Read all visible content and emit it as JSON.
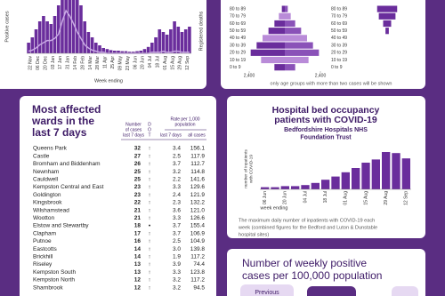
{
  "cases_panel": {
    "type": "bar",
    "y_label_left": "Positive cases",
    "y_label_right": "Registered deaths",
    "x_label": "Week ending",
    "dates": [
      "22 Nov",
      "06 Dec",
      "20 Dec",
      "03 Jan",
      "17 Jan",
      "31 Jan",
      "14 Feb",
      "28 Feb",
      "14 Mar",
      "28 Mar",
      "11 Apr",
      "25 Apr",
      "09 May",
      "23 May",
      "06 Jun",
      "20 Jun",
      "04 Jul",
      "18 Jul",
      "01 Aug",
      "15 Aug",
      "29 Aug",
      "12 Sep"
    ],
    "cases": [
      20,
      30,
      45,
      60,
      70,
      60,
      55,
      70,
      90,
      120,
      140,
      150,
      130,
      110,
      90,
      60,
      40,
      30,
      20,
      15,
      10,
      8,
      6,
      5,
      5,
      4,
      4,
      3,
      3,
      4,
      5,
      8,
      12,
      20,
      30,
      45,
      40,
      35,
      45,
      60,
      50,
      40,
      45,
      50
    ],
    "deaths": [
      2,
      3,
      5,
      8,
      10,
      12,
      12,
      14,
      18,
      30,
      40,
      35,
      28,
      20,
      14,
      8,
      5,
      3,
      2,
      1,
      1,
      0,
      0,
      0,
      0,
      0,
      0,
      0,
      0,
      0,
      0,
      0,
      0,
      1,
      1,
      1,
      2,
      1,
      1,
      2,
      2,
      1,
      1,
      1
    ],
    "ylim": [
      0,
      100
    ],
    "y2lim": [
      0,
      50
    ]
  },
  "age_panel": {
    "type": "bar",
    "age_groups": [
      "80 to 89",
      "70 to 79",
      "60 to 69",
      "50 to 59",
      "40 to 49",
      "30 to 39",
      "20 to 29",
      "10 to 19",
      "0 to 9"
    ],
    "cases": [
      200,
      400,
      700,
      1100,
      1500,
      1900,
      2300,
      1600,
      700
    ],
    "deaths": [
      30,
      25,
      12,
      5,
      0,
      0,
      0,
      0,
      0
    ],
    "xticks": [
      {
        "value": -2400,
        "label": "2,400"
      },
      {
        "value": 2400,
        "label": "2,400"
      }
    ],
    "deaths_xlim": [
      -40,
      40
    ],
    "note": "only age groups with more than two cases will be shown"
  },
  "wards": {
    "title": [
      "Most affected",
      "wards in the",
      "last 7 days"
    ],
    "headers": {
      "cases": [
        "Number",
        "of cases"
      ],
      "dot": [
        "D",
        "O",
        "T"
      ],
      "rate": [
        "Rate per 1,000",
        "population"
      ],
      "cases_sub": "last 7 days",
      "rate7": "last 7 days",
      "all": "all cases"
    },
    "rows": [
      [
        "Queens Park",
        "32",
        "↑",
        "3.4",
        "156.1"
      ],
      [
        "Castle",
        "27",
        "↑",
        "2.5",
        "117.9"
      ],
      [
        "Bromham and Biddenham",
        "26",
        "↑",
        "3.7",
        "112.7"
      ],
      [
        "Newnham",
        "25",
        "↑",
        "3.2",
        "114.8"
      ],
      [
        "Cauldwell",
        "25",
        "↑",
        "2.2",
        "141.6"
      ],
      [
        "Kempston Central and East",
        "23",
        "↑",
        "3.3",
        "129.6"
      ],
      [
        "Goldington",
        "23",
        "↑",
        "2.4",
        "121.9"
      ],
      [
        "Kingsbrook",
        "22",
        "↑",
        "2.3",
        "132.2"
      ],
      [
        "Wilshamstead",
        "21",
        "↑",
        "3.6",
        "121.0"
      ],
      [
        "Wootton",
        "21",
        "↑",
        "3.3",
        "126.6"
      ],
      [
        "Elstow and Stewartby",
        "18",
        "•",
        "3.7",
        "155.4"
      ],
      [
        "Clapham",
        "17",
        "↑",
        "3.7",
        "106.9"
      ],
      [
        "Putnoe",
        "16",
        "↑",
        "2.5",
        "104.9"
      ],
      [
        "Eastcotts",
        "14",
        "↑",
        "3.0",
        "139.8"
      ],
      [
        "Brickhill",
        "14",
        "↑",
        "1.9",
        "117.2"
      ],
      [
        "Riseley",
        "13",
        "↑",
        "3.9",
        "74.4"
      ],
      [
        "Kempston South",
        "13",
        "↑",
        "3.3",
        "123.8"
      ],
      [
        "Kempston North",
        "12",
        "↑",
        "3.2",
        "117.2"
      ],
      [
        "Sharnbrook",
        "12",
        "↑",
        "3.2",
        "94.5"
      ]
    ]
  },
  "hospital": {
    "type": "bar",
    "title": [
      "Hospital bed occupancy",
      "patients with COVID-19"
    ],
    "subtitle": [
      "Bedfordshire Hospitals NHS",
      "Foundation Trust"
    ],
    "y_label": [
      "number of inpatients",
      "with COVID-19"
    ],
    "x_label": "week ending",
    "categories": [
      "06 Jun",
      null,
      "20 Jun",
      null,
      "04 Jul",
      null,
      "18 Jul",
      null,
      "01 Aug",
      null,
      "15 Aug",
      null,
      "29 Aug",
      null,
      "12 Sep"
    ],
    "values": [
      2,
      2,
      3,
      3,
      4,
      6,
      9,
      12,
      16,
      20,
      25,
      28,
      35,
      34,
      29
    ],
    "ylim": [
      0,
      40
    ],
    "color": "#6a2d9c",
    "note": [
      "The maximum daily number of inpatients with COVID-19 each",
      "week (combined figures for the Bedford and Luton & Dunstable",
      "hospital sites)"
    ]
  },
  "weekly": {
    "title": [
      "Number of weekly positive",
      "cases per 100,000 population"
    ],
    "button": "Previous"
  }
}
